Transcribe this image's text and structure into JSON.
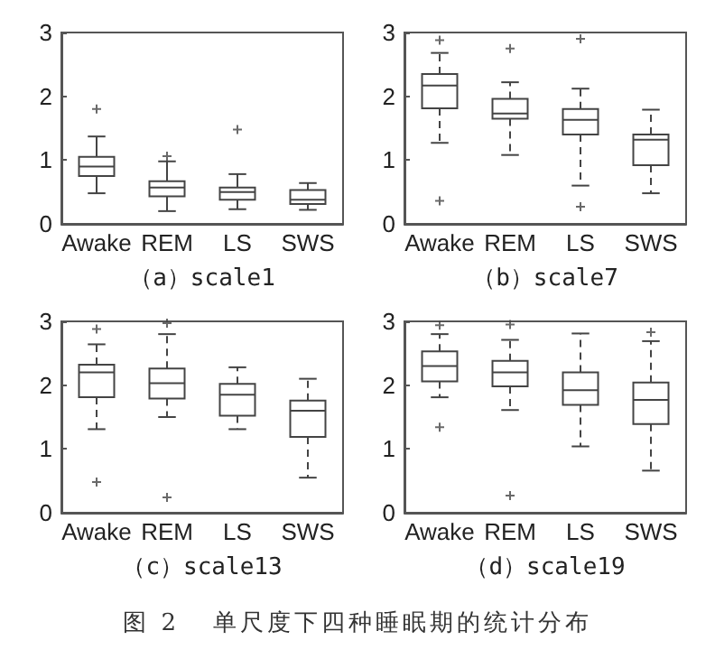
{
  "chart_data": [
    {
      "type": "box",
      "xlabel": "（a）scale1",
      "categories": [
        "Awake",
        "REM",
        "LS",
        "SWS"
      ],
      "color": "#444444",
      "marker": "cross",
      "line_style": "solid",
      "ylim": [
        0,
        3
      ],
      "yticks": [
        0,
        1,
        2,
        3
      ],
      "grid": false,
      "boxes": [
        {
          "low": 0.48,
          "q1": 0.75,
          "median": 0.9,
          "q3": 1.05,
          "high": 1.37,
          "outliers": [
            1.8
          ]
        },
        {
          "low": 0.2,
          "q1": 0.43,
          "median": 0.57,
          "q3": 0.67,
          "high": 0.98,
          "outliers": [
            1.06
          ]
        },
        {
          "low": 0.23,
          "q1": 0.38,
          "median": 0.5,
          "q3": 0.57,
          "high": 0.78,
          "outliers": [
            1.48
          ]
        },
        {
          "low": 0.22,
          "q1": 0.31,
          "median": 0.38,
          "q3": 0.53,
          "high": 0.64
        }
      ]
    },
    {
      "type": "box",
      "xlabel": "（b）scale7",
      "categories": [
        "Awake",
        "REM",
        "LS",
        "SWS"
      ],
      "color": "#444444",
      "marker": "cross",
      "line_style": "dashed",
      "ylim": [
        0,
        3
      ],
      "yticks": [
        0,
        1,
        2,
        3
      ],
      "grid": false,
      "boxes": [
        {
          "low": 1.27,
          "q1": 1.81,
          "median": 2.17,
          "q3": 2.35,
          "high": 2.68,
          "outliers": [
            2.88,
            0.36
          ]
        },
        {
          "low": 1.08,
          "q1": 1.65,
          "median": 1.73,
          "q3": 1.96,
          "high": 2.22,
          "outliers": [
            2.75
          ]
        },
        {
          "low": 0.6,
          "q1": 1.4,
          "median": 1.63,
          "q3": 1.8,
          "high": 2.12,
          "outliers": [
            2.9,
            0.27
          ]
        },
        {
          "low": 0.48,
          "q1": 0.92,
          "median": 1.32,
          "q3": 1.4,
          "high": 1.79
        }
      ]
    },
    {
      "type": "box",
      "xlabel": "（c）scale13",
      "categories": [
        "Awake",
        "REM",
        "LS",
        "SWS"
      ],
      "color": "#444444",
      "marker": "cross",
      "line_style": "dashed",
      "ylim": [
        0,
        3
      ],
      "yticks": [
        0,
        1,
        2,
        3
      ],
      "grid": false,
      "boxes": [
        {
          "low": 1.31,
          "q1": 1.81,
          "median": 2.2,
          "q3": 2.32,
          "high": 2.64,
          "outliers": [
            2.88,
            0.48
          ]
        },
        {
          "low": 1.5,
          "q1": 1.79,
          "median": 2.03,
          "q3": 2.26,
          "high": 2.8,
          "outliers": [
            2.97,
            0.24
          ]
        },
        {
          "low": 1.31,
          "q1": 1.52,
          "median": 1.85,
          "q3": 2.02,
          "high": 2.28
        },
        {
          "low": 0.55,
          "q1": 1.19,
          "median": 1.6,
          "q3": 1.76,
          "high": 2.1
        }
      ]
    },
    {
      "type": "box",
      "xlabel": "（d）scale19",
      "categories": [
        "Awake",
        "REM",
        "LS",
        "SWS"
      ],
      "color": "#444444",
      "marker": "cross",
      "line_style": "dashed",
      "ylim": [
        0,
        3
      ],
      "yticks": [
        0,
        1,
        2,
        3
      ],
      "grid": false,
      "annotations": [
        "图 2   单尺度下四种睡眠期的统计分布"
      ],
      "boxes": [
        {
          "low": 1.81,
          "q1": 2.06,
          "median": 2.3,
          "q3": 2.53,
          "high": 2.8,
          "outliers": [
            2.94,
            1.34
          ]
        },
        {
          "low": 1.61,
          "q1": 1.98,
          "median": 2.2,
          "q3": 2.38,
          "high": 2.71,
          "outliers": [
            2.95,
            0.27
          ]
        },
        {
          "low": 1.04,
          "q1": 1.69,
          "median": 1.92,
          "q3": 2.2,
          "high": 2.81
        },
        {
          "low": 0.66,
          "q1": 1.39,
          "median": 1.77,
          "q3": 2.04,
          "high": 2.69,
          "outliers": [
            2.83
          ]
        }
      ]
    }
  ]
}
